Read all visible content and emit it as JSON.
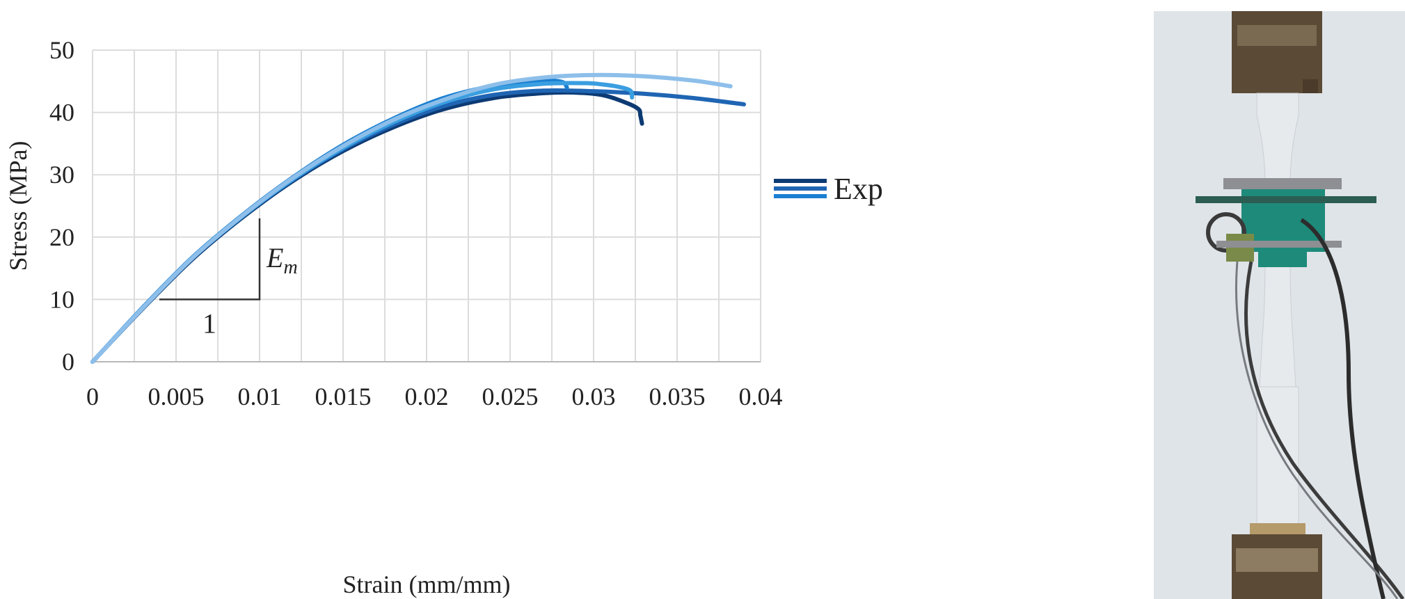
{
  "chart_data": {
    "type": "line",
    "xlabel": "Strain (mm/mm)",
    "ylabel": "Stress (MPa)",
    "xlim": [
      0,
      0.04
    ],
    "ylim": [
      0,
      50
    ],
    "x_ticks": [
      "0",
      "0.005",
      "0.01",
      "0.015",
      "0.02",
      "0.025",
      "0.03",
      "0.035",
      "0.04"
    ],
    "y_ticks": [
      "0",
      "10",
      "20",
      "30",
      "40",
      "50"
    ],
    "grid": true,
    "legend": {
      "label": "Exp",
      "position": "right"
    },
    "series": [
      {
        "color": "#0d3a73",
        "x": [
          0,
          0.003,
          0.006,
          0.009,
          0.012,
          0.015,
          0.018,
          0.021,
          0.024,
          0.0265,
          0.0285,
          0.0305,
          0.032,
          0.0327,
          0.0328,
          0.0329
        ],
        "y": [
          0,
          8.5,
          16.5,
          23.2,
          29,
          33.8,
          37.6,
          40.5,
          42.3,
          43,
          43.2,
          42.8,
          41.5,
          40.5,
          39.5,
          38.2
        ]
      },
      {
        "color": "#1f65b3",
        "x": [
          0,
          0.003,
          0.006,
          0.009,
          0.012,
          0.015,
          0.018,
          0.021,
          0.024,
          0.027,
          0.03,
          0.033,
          0.036,
          0.039
        ],
        "y": [
          0,
          8.6,
          16.7,
          23.4,
          29.2,
          34.1,
          38,
          41,
          42.8,
          43.5,
          43.4,
          43,
          42.3,
          41.3
        ]
      },
      {
        "color": "#1a7fd1",
        "x": [
          0,
          0.003,
          0.006,
          0.009,
          0.012,
          0.015,
          0.018,
          0.021,
          0.024,
          0.026,
          0.0275,
          0.0282,
          0.0284
        ],
        "y": [
          0,
          8.7,
          16.8,
          23.6,
          29.6,
          34.8,
          39,
          42.3,
          44.3,
          45,
          45.1,
          44.8,
          44
        ]
      },
      {
        "color": "#3a9ee0",
        "x": [
          0,
          0.003,
          0.006,
          0.009,
          0.012,
          0.015,
          0.018,
          0.021,
          0.024,
          0.027,
          0.0295,
          0.0305,
          0.0315,
          0.0322,
          0.0323
        ],
        "y": [
          0,
          8.6,
          16.7,
          23.4,
          29.3,
          34.3,
          38.4,
          41.6,
          43.7,
          44.6,
          44.7,
          44.5,
          44.1,
          43.5,
          42.4
        ]
      },
      {
        "color": "#8dbfea",
        "x": [
          0,
          0.003,
          0.006,
          0.009,
          0.012,
          0.015,
          0.018,
          0.021,
          0.024,
          0.027,
          0.03,
          0.033,
          0.036,
          0.0382
        ],
        "y": [
          0,
          8.6,
          16.7,
          23.5,
          29.5,
          34.6,
          38.8,
          42,
          44.4,
          45.6,
          46,
          45.8,
          45.1,
          44.2
        ]
      }
    ],
    "annotation": {
      "slope_triangle": {
        "x0": 0.004,
        "x1": 0.01,
        "y0": 10,
        "y1": 23
      },
      "run_label": "1",
      "rise_label": "E",
      "rise_subscript": "m"
    }
  },
  "photo": {
    "description_icon": "tensile-specimen-photo",
    "colors": {
      "background": "#dfe4e8",
      "grip": "#5b4a35",
      "specimen": "#e6eaed",
      "extensometer": "#1e8a7a",
      "cable": "#3c3c3c"
    }
  }
}
